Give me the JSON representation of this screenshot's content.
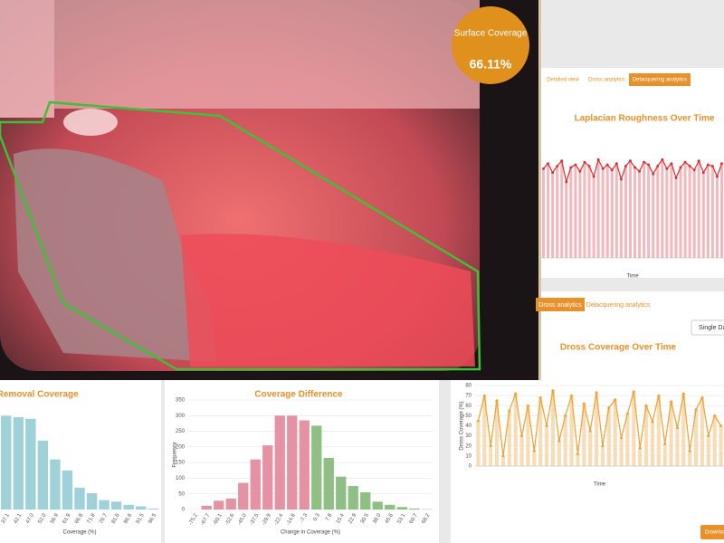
{
  "ui": {
    "badge_title": "Surface Coverage",
    "badge_value": "66.11%",
    "top_tabs": [
      "Detailed view",
      "Dross analytics",
      "Delacquering analytics"
    ],
    "bottom_tabs": [
      "Dross analytics",
      "Delacquering analytics"
    ],
    "dropdown": "Single Day",
    "download": "Download"
  },
  "chart_data": [
    {
      "type": "bar",
      "title": "-Removal Coverage",
      "xlabel": "Coverage (%)",
      "categories": [
        "37.1",
        "42.1",
        "47.0",
        "52.0",
        "56.9",
        "61.9",
        "66.8",
        "71.8",
        "76.7",
        "81.6",
        "86.6",
        "91.5",
        "96.5"
      ],
      "values": [
        300,
        295,
        290,
        220,
        160,
        125,
        70,
        52,
        30,
        25,
        15,
        10,
        3
      ],
      "color": "#9fd1d9",
      "ylim": [
        0,
        350
      ]
    },
    {
      "type": "bar",
      "title": "Coverage Difference",
      "xlabel": "Change in Coverage (%)",
      "ylabel": "Frequency",
      "categories": [
        "-75.2",
        "-67.7",
        "-60.1",
        "-52.6",
        "-45.0",
        "-37.5",
        "-29.9",
        "-22.4",
        "-14.8",
        "-7.3",
        "0.3",
        "7.8",
        "15.4",
        "22.9",
        "30.5",
        "38.0",
        "45.6",
        "53.1",
        "60.7",
        "68.2"
      ],
      "values": [
        0,
        12,
        28,
        35,
        85,
        160,
        205,
        300,
        300,
        285,
        268,
        165,
        105,
        75,
        55,
        25,
        15,
        8,
        3,
        1
      ],
      "bar_colors": [
        "#e593a4",
        "#e593a4",
        "#e593a4",
        "#e593a4",
        "#e593a4",
        "#e593a4",
        "#e593a4",
        "#e593a4",
        "#e593a4",
        "#e593a4",
        "#8fbf85",
        "#8fbf85",
        "#8fbf85",
        "#8fbf85",
        "#8fbf85",
        "#8fbf85",
        "#8fbf85",
        "#8fbf85",
        "#8fbf85",
        "#8fbf85"
      ],
      "ylim": [
        0,
        350
      ],
      "yticks": [
        0,
        50,
        100,
        150,
        200,
        250,
        300,
        350
      ]
    },
    {
      "type": "line",
      "title": "Laplacian Roughness Over Time",
      "xlabel": "Time",
      "values": [
        68,
        72,
        65,
        70,
        74,
        58,
        69,
        71,
        66,
        73,
        70,
        62,
        75,
        68,
        71,
        67,
        72,
        60,
        70,
        74,
        69,
        66,
        73,
        71,
        64,
        70,
        75,
        68,
        72,
        61,
        69,
        73,
        70,
        67,
        74,
        65,
        71,
        70,
        62,
        72
      ],
      "color": "#e0292f",
      "fill": "#f2b8bb",
      "ylim": [
        0,
        100
      ]
    },
    {
      "type": "line",
      "title": "Dross Coverage Over Time",
      "xlabel": "Time",
      "ylabel": "Dross Coverage (%)",
      "values": [
        45,
        70,
        20,
        65,
        10,
        55,
        72,
        30,
        60,
        15,
        68,
        40,
        75,
        25,
        50,
        70,
        12,
        62,
        35,
        73,
        20,
        58,
        66,
        28,
        52,
        74,
        18,
        60,
        44,
        70,
        22,
        64,
        38,
        72,
        15,
        56,
        68,
        30,
        50,
        40
      ],
      "color": "#f0a030",
      "fill": "#f7dcb5",
      "ylim": [
        0,
        80
      ],
      "yticks": [
        0,
        10,
        20,
        30,
        40,
        50,
        60,
        70,
        80
      ]
    }
  ]
}
